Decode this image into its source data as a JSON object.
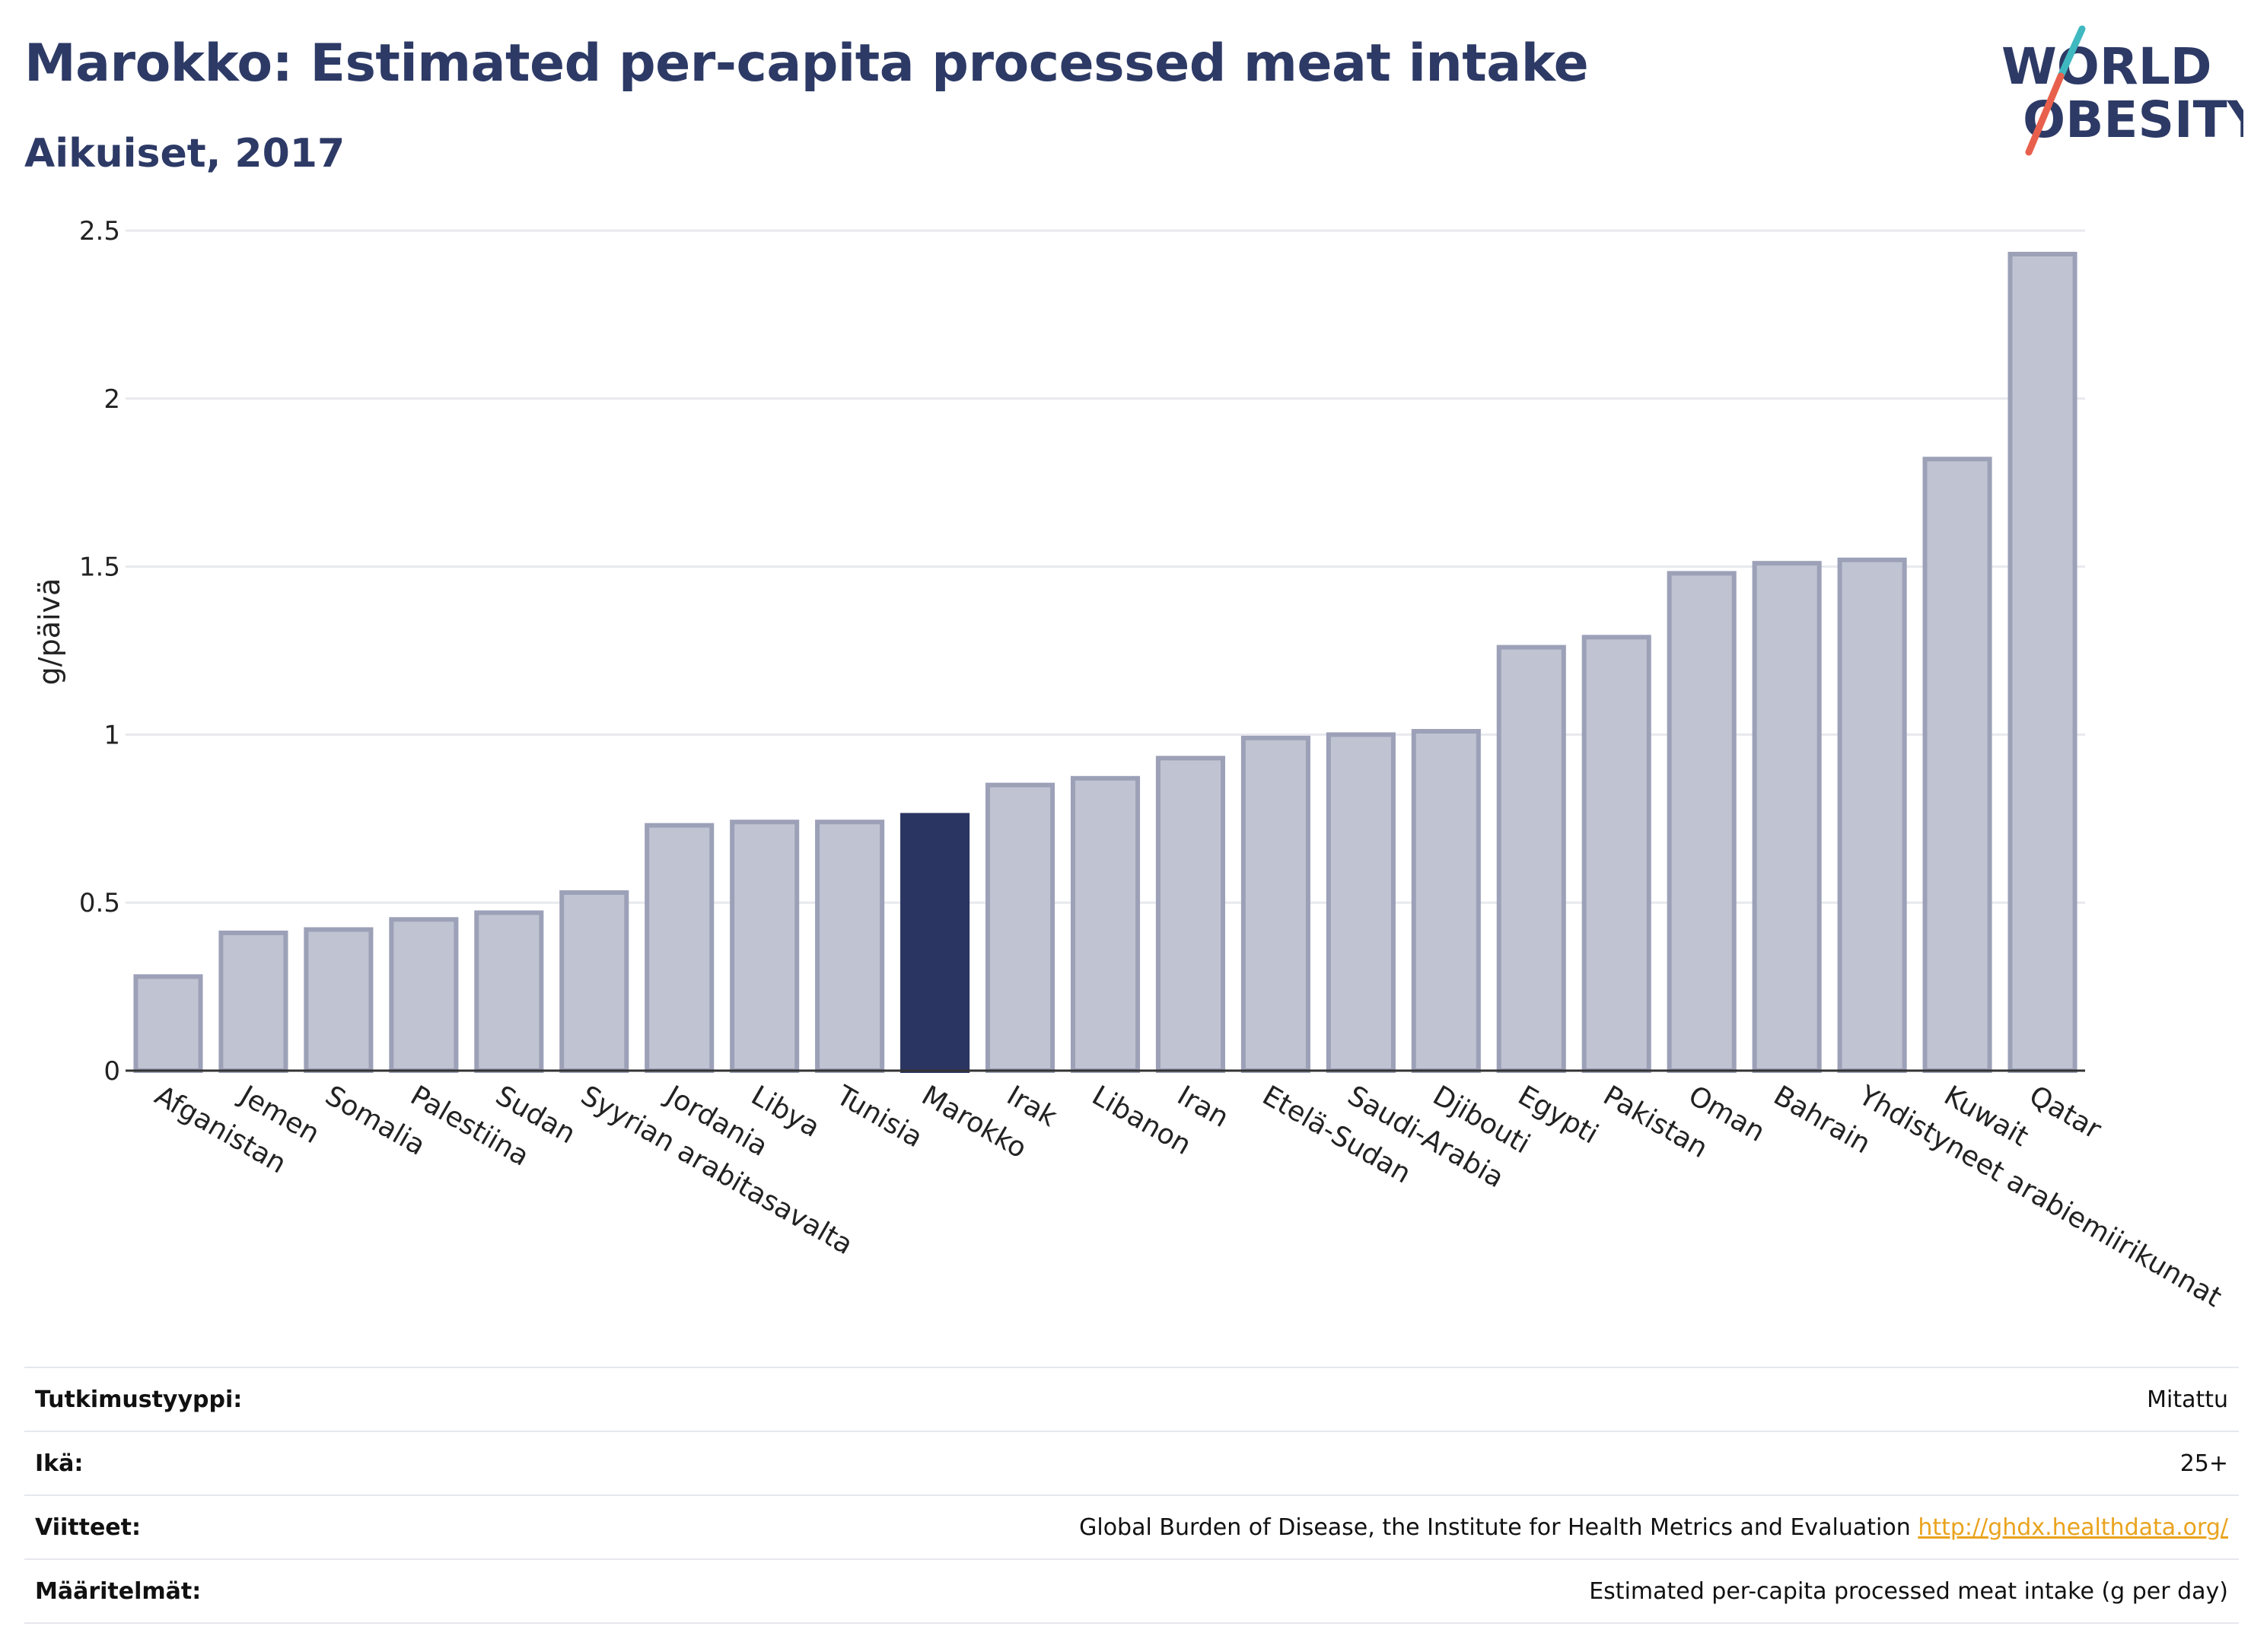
{
  "header": {
    "title": "Marokko: Estimated per-capita processed meat intake",
    "subtitle": "Aikuiset, 2017"
  },
  "logo": {
    "line1": "WORLD",
    "line2": "OBESITY",
    "colors": {
      "text": "#2d3a66",
      "slash_top": "#3fb8c0",
      "slash_bottom": "#e8604c"
    }
  },
  "colors": {
    "bar_fill": "#c0c3d1",
    "bar_stroke": "#9ca1b8",
    "highlight_fill": "#2b3562",
    "gridline": "#e8e9ee",
    "link": "#e9a31e"
  },
  "chart_data": {
    "type": "bar",
    "ylabel": "g/päivä",
    "ylim": [
      0,
      2.5
    ],
    "yticks": [
      0,
      0.5,
      1,
      1.5,
      2,
      2.5
    ],
    "ytick_labels": [
      "0",
      "0.5",
      "1",
      "1.5",
      "2",
      "2.5"
    ],
    "grid": true,
    "highlight": "Marokko",
    "categories": [
      "Afganistan",
      "Jemen",
      "Somalia",
      "Palestiina",
      "Sudan",
      "Syyrian arabitasavalta",
      "Jordania",
      "Libya",
      "Tunisia",
      "Marokko",
      "Irak",
      "Libanon",
      "Iran",
      "Etelä-Sudan",
      "Saudi-Arabia",
      "Djibouti",
      "Egypti",
      "Pakistan",
      "Oman",
      "Bahrain",
      "Yhdistyneet arabiemiirikunnat",
      "Kuwait",
      "Qatar"
    ],
    "values": [
      0.28,
      0.41,
      0.42,
      0.45,
      0.47,
      0.53,
      0.73,
      0.74,
      0.74,
      0.76,
      0.85,
      0.87,
      0.93,
      0.99,
      1.0,
      1.01,
      1.26,
      1.29,
      1.48,
      1.51,
      1.52,
      1.82,
      2.43
    ]
  },
  "meta": {
    "rows": [
      {
        "key": "Tutkimustyyppi:",
        "value": "Mitattu"
      },
      {
        "key": "Ikä:",
        "value": "25+"
      },
      {
        "key": "Viitteet:",
        "value": "Global Burden of Disease, the Institute for Health Metrics and Evaluation",
        "link": "http://ghdx.healthdata.org/"
      },
      {
        "key": "Määritelmät:",
        "value": "Estimated per-capita processed meat intake (g per day)"
      }
    ]
  }
}
